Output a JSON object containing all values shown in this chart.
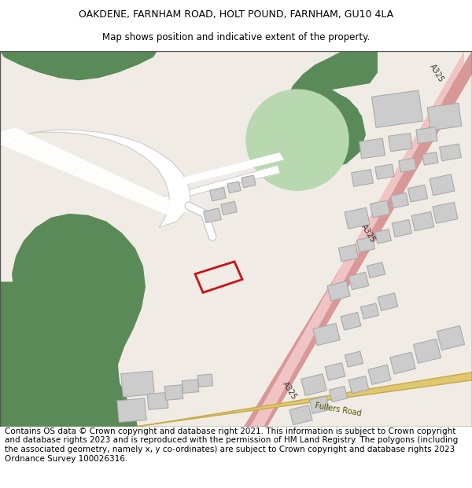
{
  "title": "OAKDENE, FARNHAM ROAD, HOLT POUND, FARNHAM, GU10 4LA",
  "subtitle": "Map shows position and indicative extent of the property.",
  "footer": "Contains OS data © Crown copyright and database right 2021. This information is subject to Crown copyright and database rights 2023 and is reproduced with the permission of HM Land Registry. The polygons (including the associated geometry, namely x, y co-ordinates) are subject to Crown copyright and database rights 2023 Ordnance Survey 100026316.",
  "title_fontsize": 9,
  "subtitle_fontsize": 8.5,
  "footer_fontsize": 7.5,
  "bg_color": "#ffffff",
  "map_bg": "#f0ece5",
  "dark_green": "#5a8a58",
  "light_green": "#b8d8b0",
  "pink_road": "#f0c4c4",
  "pink_road_edge": "#d89898",
  "yellow_road": "#dfc870",
  "bldg": "#cccccc",
  "bldg_e": "#aaaaaa",
  "white_road": "#ffffff",
  "white_road_e": "#cccccc",
  "red_outline": "#cc1111"
}
